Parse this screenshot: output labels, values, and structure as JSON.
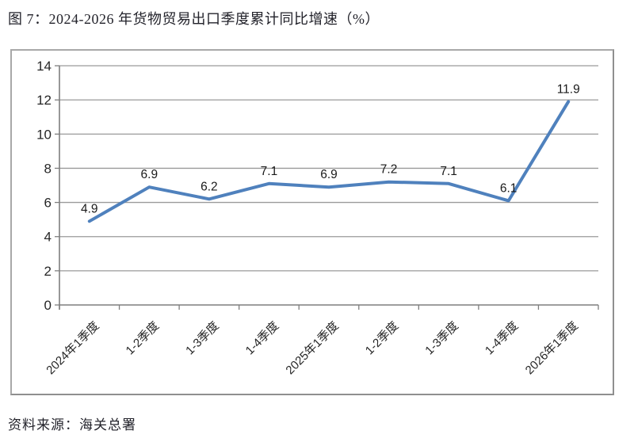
{
  "title": "图 7：2024-2026 年货物贸易出口季度累计同比增速（%）",
  "source": "资料来源：海关总署",
  "colors": {
    "line": "#4F81BD",
    "grid": "#9a9a9a",
    "axis": "#7f7f7f",
    "text": "#262626",
    "frame_border": "#a8a8a8"
  },
  "chart_data": {
    "type": "line",
    "categories": [
      "2024年1季度",
      "1-2季度",
      "1-3季度",
      "1-4季度",
      "2025年1季度",
      "1-2季度",
      "1-3季度",
      "1-4季度",
      "2026年1季度"
    ],
    "values": [
      4.9,
      6.9,
      6.2,
      7.1,
      6.9,
      7.2,
      7.1,
      6.1,
      11.9
    ],
    "title": "图 7：2024-2026 年货物贸易出口季度累计同比增速（%）",
    "xlabel": "",
    "ylabel": "",
    "ylim": [
      0,
      14
    ],
    "ytick_step": 2,
    "grid": true,
    "legend_position": "none",
    "data_labels": true,
    "line_width": 4,
    "markers": false
  }
}
